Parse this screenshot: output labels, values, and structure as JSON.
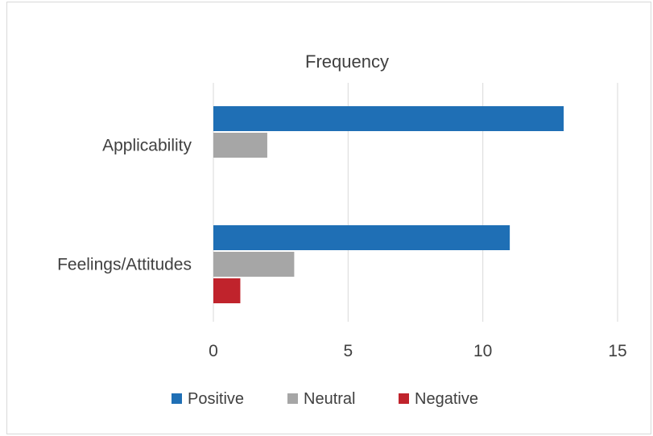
{
  "chart_data": {
    "type": "bar",
    "orientation": "horizontal",
    "title": "Frequency",
    "categories": [
      "Applicability",
      "Feelings/Attitudes"
    ],
    "series": [
      {
        "name": "Positive",
        "values": [
          13,
          11
        ],
        "color": "#1f6fb5"
      },
      {
        "name": "Neutral",
        "values": [
          2,
          3
        ],
        "color": "#a6a6a6"
      },
      {
        "name": "Negative",
        "values": [
          0,
          1
        ],
        "color": "#c0232c"
      }
    ],
    "xlim": [
      0,
      15
    ],
    "xticks": [
      0,
      5,
      10,
      15
    ],
    "tick_labels": [
      "0",
      "5",
      "10",
      "15"
    ],
    "grid": "vertical",
    "legend": "bottom"
  }
}
